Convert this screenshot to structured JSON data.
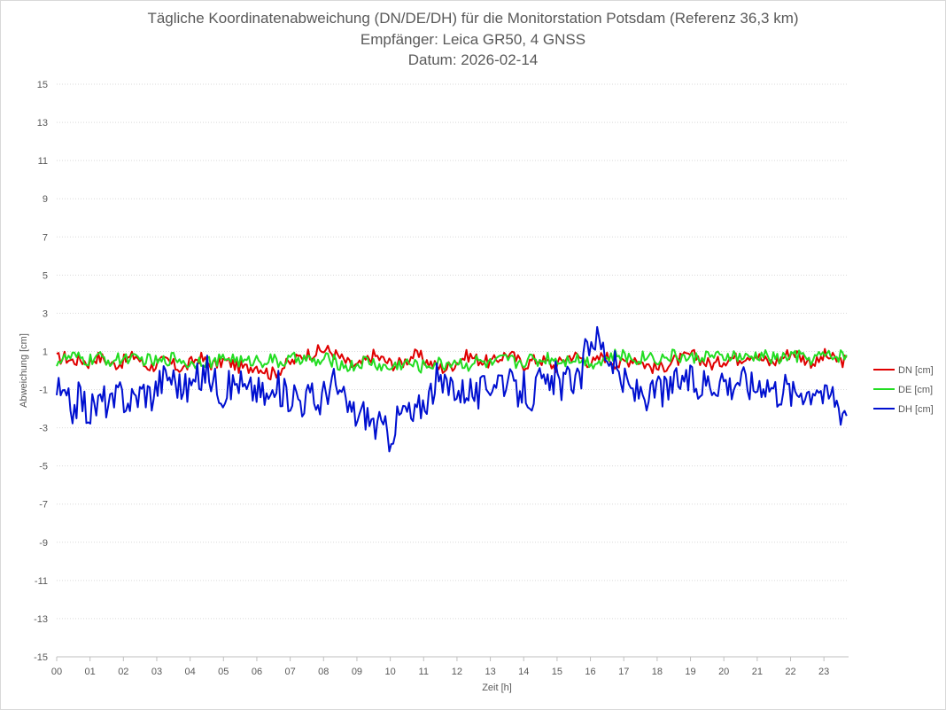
{
  "chart_data": {
    "type": "line",
    "title": "Tägliche Koordinatenabweichung (DN/DE/DH) für die Monitorstation Potsdam (Referenz 36,3 km)",
    "subtitle": "Empfänger: Leica GR50, 4 GNSS",
    "date_line": "Datum: 2026-02-14",
    "xlabel": "Zeit [h]",
    "ylabel": "Abweichung [cm]",
    "xlim": [
      0,
      24
    ],
    "ylim": [
      -15,
      15
    ],
    "yticks": [
      "15",
      "13",
      "11",
      "9",
      "7",
      "5",
      "3",
      "1",
      "-1",
      "-3",
      "-5",
      "-7",
      "-9",
      "-11",
      "-13",
      "-15"
    ],
    "ytick_values": [
      15,
      13,
      11,
      9,
      7,
      5,
      3,
      1,
      -1,
      -3,
      -5,
      -7,
      -9,
      -11,
      -13,
      -15
    ],
    "xticks": [
      "00",
      "01",
      "02",
      "03",
      "04",
      "05",
      "06",
      "07",
      "08",
      "09",
      "10",
      "11",
      "12",
      "13",
      "14",
      "15",
      "16",
      "17",
      "18",
      "19",
      "20",
      "21",
      "22",
      "23"
    ],
    "grid": "horizontal dotted",
    "legend_position": "right",
    "series": [
      {
        "name": "DN [cm]",
        "color": "#e00000",
        "values": [
          0.6,
          0.7,
          0.5,
          0.6,
          0.4,
          0.7,
          0.6,
          0.3,
          0.4,
          0.6,
          0.8,
          0.3,
          0.2,
          0.4,
          0.5,
          0.2,
          0.1,
          0.4,
          0.7,
          0.4,
          0.3,
          0.5,
          0.4,
          0.2,
          0.1,
          0.3,
          0.1,
          -0.2,
          0.0,
          0.3,
          0.5,
          0.8,
          0.9,
          1.0,
          1.1,
          0.9,
          0.6,
          0.3,
          0.2,
          0.5,
          0.8,
          0.6,
          0.4,
          0.3,
          0.5,
          0.8,
          0.7,
          0.4,
          0.2,
          0.1,
          0.3,
          0.6,
          0.8,
          0.6,
          0.5,
          0.4,
          0.7,
          0.9,
          0.6,
          0.3,
          0.5,
          0.6,
          0.4,
          0.2,
          0.6,
          0.8,
          0.7,
          0.5,
          0.4,
          0.8,
          0.6,
          0.3,
          0.5,
          0.7,
          0.4,
          0.2,
          0.1,
          0.3,
          0.5,
          0.6,
          0.8,
          0.7,
          0.4,
          0.3,
          0.5,
          0.7,
          0.6,
          0.8,
          0.9,
          0.6,
          0.4,
          0.5,
          0.8,
          1.0,
          0.7,
          0.5,
          0.4,
          0.8,
          0.6,
          0.5
        ],
        "note": "values sampled every 0.24 h from 00 to 23.76"
      },
      {
        "name": "DE [cm]",
        "color": "#22dd22",
        "values": [
          0.5,
          0.6,
          0.7,
          0.6,
          0.5,
          0.7,
          0.6,
          0.5,
          0.6,
          0.7,
          0.5,
          0.6,
          0.5,
          0.4,
          0.6,
          0.7,
          0.5,
          0.3,
          0.6,
          0.5,
          0.4,
          0.6,
          0.7,
          0.5,
          0.4,
          0.6,
          0.5,
          0.6,
          0.4,
          0.5,
          0.6,
          0.7,
          0.5,
          0.4,
          0.6,
          0.5,
          0.3,
          0.2,
          0.3,
          0.5,
          0.4,
          0.2,
          0.1,
          0.3,
          0.4,
          0.3,
          0.2,
          0.3,
          0.4,
          0.3,
          0.5,
          0.4,
          0.3,
          0.5,
          0.4,
          0.3,
          0.5,
          0.6,
          0.4,
          0.5,
          0.6,
          0.5,
          0.7,
          0.6,
          0.5,
          0.7,
          0.6,
          0.5,
          0.4,
          0.6,
          0.7,
          0.8,
          0.7,
          0.6,
          0.7,
          0.8,
          0.6,
          0.7,
          0.8,
          0.7,
          0.6,
          0.7,
          0.8,
          0.7,
          0.6,
          0.8,
          0.7,
          0.6,
          0.7,
          0.8,
          0.7,
          0.6,
          0.7,
          0.8,
          0.7,
          0.6,
          0.7,
          0.8,
          0.7,
          0.8
        ]
      },
      {
        "name": "DH [cm]",
        "color": "#0010d0",
        "values": [
          -1.0,
          -1.6,
          -2.0,
          -1.3,
          -2.2,
          -1.8,
          -1.5,
          -1.9,
          -1.2,
          -1.6,
          -1.4,
          -1.0,
          -1.3,
          -0.6,
          -0.2,
          -0.5,
          -1.0,
          -0.8,
          -0.4,
          0.0,
          -0.6,
          -1.1,
          -0.8,
          -0.5,
          -1.2,
          -0.9,
          -1.3,
          -1.5,
          -0.9,
          -1.4,
          -1.1,
          -1.6,
          -1.3,
          -1.8,
          -1.0,
          -0.6,
          -1.5,
          -2.0,
          -2.4,
          -2.2,
          -2.8,
          -3.0,
          -3.4,
          -2.6,
          -2.0,
          -2.6,
          -1.8,
          -1.3,
          -0.5,
          -1.0,
          -0.6,
          -1.2,
          -0.8,
          -1.4,
          -1.0,
          -0.5,
          -0.3,
          -0.7,
          -1.2,
          -0.9,
          -1.4,
          -0.6,
          -1.0,
          -0.4,
          -0.8,
          -0.3,
          -0.9,
          1.5,
          1.8,
          1.2,
          0.6,
          -0.3,
          -0.8,
          -1.2,
          -1.0,
          -1.5,
          -0.8,
          -1.2,
          -0.7,
          -0.4,
          -0.6,
          -0.9,
          -0.5,
          -0.7,
          -0.3,
          -0.8,
          -0.4,
          -0.6,
          -0.9,
          -0.5,
          -0.7,
          -1.1,
          -0.8,
          -1.3,
          -0.9,
          -1.1,
          -0.6,
          -1.5,
          -1.2,
          -2.0
        ],
        "note": "values sampled every 0.24 h from 00 to 23.76"
      }
    ]
  }
}
